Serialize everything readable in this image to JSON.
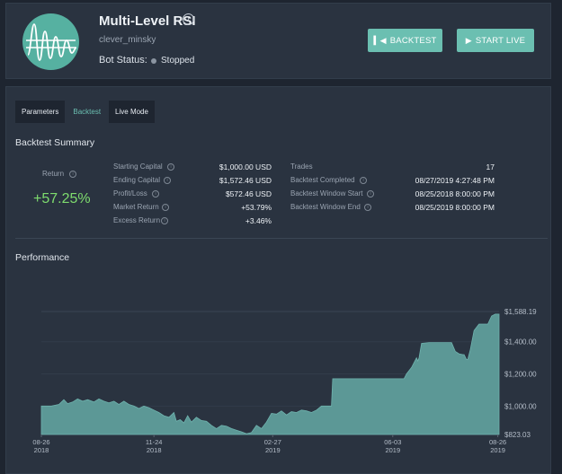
{
  "header": {
    "title": "Multi-Level RSI",
    "username": "clever_minsky",
    "status_label": "Bot Status:",
    "status_value": "Stopped",
    "backtest_label": "BACKTEST",
    "start_live_label": "START LIVE",
    "info_icon": "i"
  },
  "tabs": [
    {
      "label": "Parameters"
    },
    {
      "label": "Backtest"
    },
    {
      "label": "Live Mode"
    }
  ],
  "summary": {
    "title": "Backtest Summary",
    "return_label": "Return",
    "return_value": "+57.25%",
    "left_stats": [
      {
        "label": "Starting Capital",
        "value": "$1,000.00 USD"
      },
      {
        "label": "Ending Capital",
        "value": "$1,572.46 USD"
      },
      {
        "label": "Profit/Loss",
        "value": "$572.46 USD"
      },
      {
        "label": "Market Return",
        "value": "+53.79%"
      },
      {
        "label": "Excess Return",
        "value": "+3.46%"
      }
    ],
    "right_stats": [
      {
        "label": "Trades",
        "value": "17"
      },
      {
        "label": "Backtest Completed",
        "value": "08/27/2019 4:27:48 PM"
      },
      {
        "label": "Backtest Window Start",
        "value": "08/25/2018 8:00:00 PM"
      },
      {
        "label": "Backtest Window End",
        "value": "08/25/2019 8:00:00 PM"
      }
    ]
  },
  "performance_title": "Performance",
  "colors": {
    "accent": "#6bbfb1",
    "positive": "#7edc6e",
    "area_fill": "#5c9896",
    "background": "#2a3340"
  },
  "chart_data": {
    "type": "area",
    "y_tick_labels": [
      "$1,588.19",
      "$1,400.00",
      "$1,200.00",
      "$1,000.00",
      "$823.03"
    ],
    "y_tick_values": [
      1588.19,
      1400,
      1200,
      1000,
      823.03
    ],
    "ylim": [
      823.03,
      1588.19
    ],
    "x_ticks": [
      {
        "date": "08-26",
        "year": "2018",
        "day": 0
      },
      {
        "date": "11-24",
        "year": "2018",
        "day": 90
      },
      {
        "date": "02-27",
        "year": "2019",
        "day": 185
      },
      {
        "date": "06-03",
        "year": "2019",
        "day": 281
      },
      {
        "date": "08-26",
        "year": "2019",
        "day": 365
      }
    ],
    "points": [
      [
        0,
        1000
      ],
      [
        8,
        1000
      ],
      [
        14,
        1010
      ],
      [
        18,
        1040
      ],
      [
        21,
        1015
      ],
      [
        25,
        1025
      ],
      [
        29,
        1045
      ],
      [
        33,
        1030
      ],
      [
        37,
        1040
      ],
      [
        42,
        1025
      ],
      [
        46,
        1045
      ],
      [
        50,
        1030
      ],
      [
        54,
        1020
      ],
      [
        58,
        1030
      ],
      [
        62,
        1010
      ],
      [
        66,
        1030
      ],
      [
        70,
        1010
      ],
      [
        74,
        1000
      ],
      [
        78,
        985
      ],
      [
        82,
        1000
      ],
      [
        86,
        990
      ],
      [
        90,
        975
      ],
      [
        94,
        960
      ],
      [
        98,
        940
      ],
      [
        102,
        930
      ],
      [
        106,
        960
      ],
      [
        108,
        905
      ],
      [
        111,
        915
      ],
      [
        114,
        895
      ],
      [
        117,
        940
      ],
      [
        120,
        900
      ],
      [
        124,
        930
      ],
      [
        128,
        910
      ],
      [
        132,
        905
      ],
      [
        136,
        880
      ],
      [
        140,
        860
      ],
      [
        144,
        880
      ],
      [
        148,
        875
      ],
      [
        152,
        860
      ],
      [
        156,
        850
      ],
      [
        160,
        840
      ],
      [
        164,
        828
      ],
      [
        168,
        835
      ],
      [
        172,
        880
      ],
      [
        176,
        860
      ],
      [
        180,
        900
      ],
      [
        184,
        955
      ],
      [
        188,
        950
      ],
      [
        192,
        970
      ],
      [
        196,
        945
      ],
      [
        200,
        965
      ],
      [
        204,
        960
      ],
      [
        208,
        975
      ],
      [
        212,
        970
      ],
      [
        216,
        960
      ],
      [
        220,
        975
      ],
      [
        224,
        1000
      ],
      [
        228,
        1000
      ],
      [
        232,
        1000
      ],
      [
        233,
        1170
      ],
      [
        240,
        1170
      ],
      [
        260,
        1170
      ],
      [
        280,
        1170
      ],
      [
        290,
        1170
      ],
      [
        292,
        1200
      ],
      [
        296,
        1240
      ],
      [
        300,
        1300
      ],
      [
        301,
        1280
      ],
      [
        302,
        1300
      ],
      [
        304,
        1390
      ],
      [
        310,
        1395
      ],
      [
        320,
        1395
      ],
      [
        328,
        1395
      ],
      [
        331,
        1340
      ],
      [
        334,
        1325
      ],
      [
        337,
        1320
      ],
      [
        338,
        1320
      ],
      [
        340,
        1290
      ],
      [
        341,
        1290
      ],
      [
        343,
        1350
      ],
      [
        346,
        1470
      ],
      [
        350,
        1510
      ],
      [
        354,
        1510
      ],
      [
        357,
        1510
      ],
      [
        360,
        1560
      ],
      [
        363,
        1572
      ],
      [
        366,
        1572
      ]
    ]
  }
}
